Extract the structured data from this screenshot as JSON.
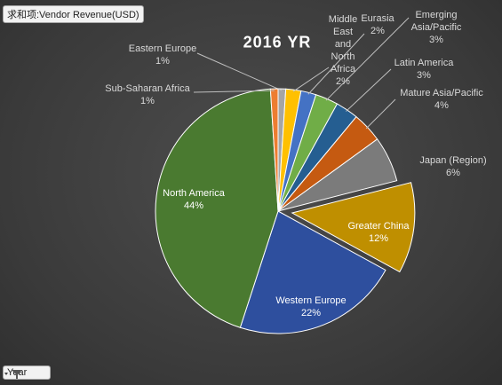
{
  "field_buttons": {
    "value_field": "求和项:Vendor Revenue(USD)",
    "axis_field": "Year"
  },
  "chart_data": {
    "type": "pie",
    "title": "2016 YR",
    "categories": [
      "Eastern Europe",
      "Middle East and North Africa",
      "Eurasia",
      "Emerging Asia/Pacific",
      "Latin America",
      "Mature Asia/Pacific",
      "Japan (Region)",
      "Greater China",
      "Western Europe",
      "North America",
      "Sub-Saharan Africa"
    ],
    "values": [
      1,
      2,
      2,
      3,
      3,
      4,
      6,
      12,
      22,
      44,
      1
    ],
    "value_labels": [
      "1%",
      "2%",
      "2%",
      "3%",
      "3%",
      "4%",
      "6%",
      "12%",
      "22%",
      "44%",
      "1%"
    ],
    "colors": [
      "#a5a5a5",
      "#ffc000",
      "#4472c4",
      "#70ad47",
      "#255e91",
      "#c55a11",
      "#7b7b7b",
      "#bf8f00",
      "#2e4f9e",
      "#4a7a30",
      "#ed7d31"
    ]
  }
}
